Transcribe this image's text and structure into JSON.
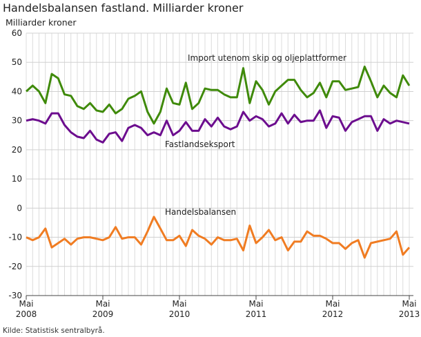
{
  "chart_data": {
    "type": "line",
    "title": "Handelsbalansen fastland. Milliarder kroner",
    "ylabel": "Milliarder kroner",
    "ylim": [
      -30,
      60
    ],
    "yticks": [
      -30,
      -20,
      -10,
      0,
      10,
      20,
      30,
      40,
      50,
      60
    ],
    "xticks": [
      {
        "month": 0,
        "label1": "Mai",
        "label2": "2008"
      },
      {
        "month": 12,
        "label1": "Mai",
        "label2": "2009"
      },
      {
        "month": 24,
        "label1": "Mai",
        "label2": "2010"
      },
      {
        "month": 36,
        "label1": "Mai",
        "label2": "2011"
      },
      {
        "month": 48,
        "label1": "Mai",
        "label2": "2012"
      },
      {
        "month": 60,
        "label1": "Mai",
        "label2": "2013"
      }
    ],
    "x_range": [
      "2008-05",
      "2013-05"
    ],
    "grid": true,
    "series": [
      {
        "name": "Import utenom skip og oljeplattformer",
        "color": "#3f8a0a",
        "values": [
          40,
          42,
          40,
          36,
          46,
          44.5,
          39,
          38.5,
          35,
          34,
          36,
          33.5,
          33,
          35.5,
          32.5,
          34,
          37.5,
          38.5,
          40,
          33,
          29,
          33,
          41,
          36,
          35.5,
          43,
          34,
          36,
          41,
          40.5,
          40.5,
          39,
          38,
          38,
          48,
          36,
          43.5,
          40.5,
          35.5,
          40,
          42,
          44,
          44,
          40.5,
          38,
          39.5,
          43,
          38,
          43.5,
          43.5,
          40.5,
          41,
          41.5,
          48.5,
          43.5,
          38,
          42,
          39.5,
          38,
          45.5,
          42
        ]
      },
      {
        "name": "Fastlandseksport",
        "color": "#6c0d8e",
        "values": [
          30,
          30.5,
          30,
          29,
          32.5,
          32.5,
          28.5,
          26,
          24.5,
          24,
          26.5,
          23.5,
          22.5,
          25.5,
          26,
          23,
          27.5,
          28.5,
          27.5,
          25,
          26,
          25,
          30,
          25,
          26.5,
          29.5,
          26.5,
          26.5,
          30.5,
          28,
          31,
          28,
          27,
          28,
          33,
          30,
          31.5,
          30.5,
          28,
          29,
          32.5,
          29,
          32,
          29.5,
          30,
          30,
          33.5,
          27.5,
          31.5,
          31,
          26.5,
          29.5,
          30.5,
          31.5,
          31.5,
          26.5,
          30.5,
          29,
          30,
          29.5,
          29
        ]
      },
      {
        "name": "Handelsbalansen",
        "color": "#f07c22",
        "values": [
          -10,
          -11,
          -10,
          -7,
          -13.5,
          -12,
          -10.5,
          -12.5,
          -10.5,
          -10,
          -10,
          -10.5,
          -11,
          -10,
          -6.5,
          -10.5,
          -10,
          -10,
          -12.5,
          -8,
          -3,
          -7,
          -11,
          -11,
          -9.5,
          -13,
          -7.5,
          -9.5,
          -10.5,
          -12.5,
          -10,
          -11,
          -11,
          -10.5,
          -14.5,
          -6,
          -12,
          -10,
          -7.5,
          -11,
          -10,
          -14.5,
          -11.5,
          -11.5,
          -8,
          -9.5,
          -9.5,
          -10.5,
          -12,
          -12,
          -14,
          -12,
          -11,
          -17,
          -12,
          -11.5,
          -11,
          -10.5,
          -8,
          -16,
          -13.5
        ]
      }
    ],
    "annotations": [
      "Import utenom skip og oljeplattformer",
      "Fastlandseksport",
      "Handelsbalansen"
    ]
  },
  "source": "Kilde: Statistisk sentralbyrå."
}
